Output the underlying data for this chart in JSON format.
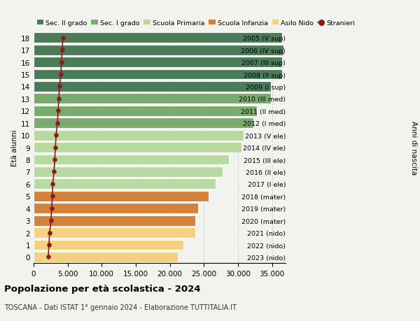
{
  "ages": [
    18,
    17,
    16,
    15,
    14,
    13,
    12,
    11,
    10,
    9,
    8,
    7,
    6,
    5,
    4,
    3,
    2,
    1,
    0
  ],
  "anni": [
    "2005 (V sup)",
    "2006 (IV sup)",
    "2007 (III sup)",
    "2008 (II sup)",
    "2009 (I sup)",
    "2010 (III med)",
    "2011 (II med)",
    "2012 (I med)",
    "2013 (V ele)",
    "2014 (IV ele)",
    "2015 (III ele)",
    "2016 (II ele)",
    "2017 (I ele)",
    "2018 (mater)",
    "2019 (mater)",
    "2020 (mater)",
    "2021 (nido)",
    "2022 (nido)",
    "2023 (nido)"
  ],
  "bar_values": [
    36500,
    36700,
    36500,
    36500,
    34800,
    34800,
    32800,
    32300,
    30800,
    30500,
    28700,
    27700,
    26700,
    25700,
    24200,
    23700,
    23700,
    22000,
    21200
  ],
  "stranieri_values": [
    4300,
    4200,
    4100,
    4000,
    3800,
    3700,
    3600,
    3500,
    3300,
    3200,
    3100,
    3000,
    2800,
    2750,
    2650,
    2550,
    2350,
    2250,
    2150
  ],
  "colors": {
    "sec2": "#4a7c59",
    "sec1": "#7aab6e",
    "primaria": "#b8d9a0",
    "infanzia": "#d4813a",
    "nido": "#f5d080",
    "stranieri": "#8b1a1a"
  },
  "school_segments": {
    "sec2": [
      14,
      15,
      16,
      17,
      18
    ],
    "sec1": [
      11,
      12,
      13
    ],
    "primaria": [
      6,
      7,
      8,
      9,
      10
    ],
    "infanzia": [
      3,
      4,
      5
    ],
    "nido": [
      0,
      1,
      2
    ]
  },
  "legend_labels": [
    "Sec. II grado",
    "Sec. I grado",
    "Scuola Primaria",
    "Scuola Infanzia",
    "Asilo Nido",
    "Stranieri"
  ],
  "title": "Popolazione per età scolastica - 2024",
  "subtitle": "TOSCANA - Dati ISTAT 1° gennaio 2024 - Elaborazione TUTTITALIA.IT",
  "ylabel": "Età alunni",
  "ylabel2": "Anni di nascita",
  "xlim": [
    0,
    37000
  ],
  "xticks": [
    0,
    5000,
    10000,
    15000,
    20000,
    25000,
    30000,
    35000
  ],
  "bar_height": 0.85,
  "background_color": "#f2f2ee",
  "grid_color": "#cccccc"
}
